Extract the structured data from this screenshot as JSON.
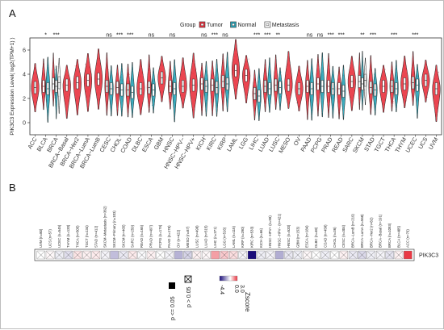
{
  "chart_data": [
    {
      "panel": "A",
      "type": "violin",
      "ylabel": "PIK3C3 Expression Level( log2(TPM+1) )",
      "ylim": [
        -1,
        7
      ],
      "yticks": [
        0,
        2,
        4,
        6
      ],
      "legend": {
        "title": "Group",
        "entries": [
          {
            "name": "Tumor",
            "color": "#e8323e"
          },
          {
            "name": "Normal",
            "color": "#27a3b7"
          },
          {
            "name": "Metastasis",
            "color": "#ffffff"
          }
        ],
        "position": "top"
      },
      "categories": [
        {
          "name": "ACC",
          "groups": [
            "T"
          ],
          "median": 2.9,
          "sig": ""
        },
        {
          "name": "BLCA",
          "groups": [
            "T",
            "N"
          ],
          "median": 3.0,
          "sig": "*"
        },
        {
          "name": "BRCA",
          "groups": [
            "T",
            "N",
            "M"
          ],
          "median": 3.2,
          "sig": "***"
        },
        {
          "name": "BRCA−Basal",
          "groups": [
            "T"
          ],
          "median": 3.1,
          "sig": ""
        },
        {
          "name": "BRCA−Her2",
          "groups": [
            "T"
          ],
          "median": 3.3,
          "sig": ""
        },
        {
          "name": "BRCA−LumA",
          "groups": [
            "T"
          ],
          "median": 3.5,
          "sig": ""
        },
        {
          "name": "BRCA−LumB",
          "groups": [
            "T"
          ],
          "median": 3.6,
          "sig": ""
        },
        {
          "name": "CESC",
          "groups": [
            "T",
            "N"
          ],
          "median": 3.0,
          "sig": "ns"
        },
        {
          "name": "CHOL",
          "groups": [
            "T",
            "N"
          ],
          "median": 2.9,
          "sig": "***"
        },
        {
          "name": "COAD",
          "groups": [
            "T",
            "N"
          ],
          "median": 2.7,
          "sig": "***"
        },
        {
          "name": "DLBC",
          "groups": [
            "T"
          ],
          "median": 2.8,
          "sig": ""
        },
        {
          "name": "ESCA",
          "groups": [
            "T",
            "N"
          ],
          "median": 2.9,
          "sig": "ns"
        },
        {
          "name": "GBM",
          "groups": [
            "T"
          ],
          "median": 3.7,
          "sig": ""
        },
        {
          "name": "HNSC",
          "groups": [
            "T",
            "N"
          ],
          "median": 3.0,
          "sig": "ns"
        },
        {
          "name": "HNSC−HPV−",
          "groups": [
            "T"
          ],
          "median": 3.0,
          "sig": ""
        },
        {
          "name": "HNSC−HPV+",
          "groups": [
            "T"
          ],
          "median": 3.1,
          "sig": ""
        },
        {
          "name": "KICH",
          "groups": [
            "T",
            "N"
          ],
          "median": 3.2,
          "sig": "ns"
        },
        {
          "name": "KIRC",
          "groups": [
            "T",
            "N"
          ],
          "median": 3.1,
          "sig": "***"
        },
        {
          "name": "KIRP",
          "groups": [
            "T",
            "N"
          ],
          "median": 3.4,
          "sig": "ns"
        },
        {
          "name": "LAML",
          "groups": [
            "T"
          ],
          "median": 4.3,
          "sig": ""
        },
        {
          "name": "LGG",
          "groups": [
            "T"
          ],
          "median": 3.9,
          "sig": ""
        },
        {
          "name": "LIHC",
          "groups": [
            "T",
            "N"
          ],
          "median": 2.4,
          "sig": "***"
        },
        {
          "name": "LUAD",
          "groups": [
            "T",
            "N"
          ],
          "median": 3.0,
          "sig": "***"
        },
        {
          "name": "LUSC",
          "groups": [
            "T",
            "N"
          ],
          "median": 3.1,
          "sig": "**"
        },
        {
          "name": "MESO",
          "groups": [
            "T"
          ],
          "median": 3.1,
          "sig": ""
        },
        {
          "name": "OV",
          "groups": [
            "T"
          ],
          "median": 2.8,
          "sig": ""
        },
        {
          "name": "PAAD",
          "groups": [
            "T",
            "N"
          ],
          "median": 3.0,
          "sig": "ns"
        },
        {
          "name": "PCPG",
          "groups": [
            "T",
            "N"
          ],
          "median": 3.2,
          "sig": "ns"
        },
        {
          "name": "PRAD",
          "groups": [
            "T",
            "N"
          ],
          "median": 3.0,
          "sig": "***"
        },
        {
          "name": "READ",
          "groups": [
            "T",
            "N"
          ],
          "median": 2.8,
          "sig": "***"
        },
        {
          "name": "SARC",
          "groups": [
            "T"
          ],
          "median": 3.4,
          "sig": ""
        },
        {
          "name": "SKCM",
          "groups": [
            "T",
            "N",
            "M"
          ],
          "median": 3.4,
          "sig": "**"
        },
        {
          "name": "STAD",
          "groups": [
            "T",
            "N"
          ],
          "median": 2.9,
          "sig": "***"
        },
        {
          "name": "TGCT",
          "groups": [
            "T"
          ],
          "median": 3.0,
          "sig": ""
        },
        {
          "name": "THCA",
          "groups": [
            "T",
            "N"
          ],
          "median": 3.0,
          "sig": "***"
        },
        {
          "name": "THYM",
          "groups": [
            "T"
          ],
          "median": 3.2,
          "sig": ""
        },
        {
          "name": "UCEC",
          "groups": [
            "T",
            "N"
          ],
          "median": 3.3,
          "sig": "***"
        },
        {
          "name": "UCS",
          "groups": [
            "T"
          ],
          "median": 3.5,
          "sig": ""
        },
        {
          "name": "UVM",
          "groups": [
            "T"
          ],
          "median": 2.8,
          "sig": ""
        }
      ]
    },
    {
      "panel": "B",
      "type": "heatmap",
      "row_label": "PIK3C3",
      "colorbar": {
        "title": "Zscore",
        "ticks": [
          "3.0",
          "0.0",
          "-4.4"
        ],
        "low": "#1a0d7a",
        "mid": "#ffffff",
        "high": "#e8323e"
      },
      "shape_legend": {
        "filled": "p <= 0.05",
        "crossed": "p > 0.05"
      },
      "columns": [
        {
          "label": "UVM (n=80)",
          "z": 0.0,
          "p_sig": false
        },
        {
          "label": "UCS (n=57)",
          "z": 0.1,
          "p_sig": false
        },
        {
          "label": "UCEC (n=545)",
          "z": -0.3,
          "p_sig": false
        },
        {
          "label": "THYM (n=120)",
          "z": -0.6,
          "p_sig": false
        },
        {
          "label": "THCA (n=505)",
          "z": 0.4,
          "p_sig": false
        },
        {
          "label": "TGCT (n=134)",
          "z": 0.2,
          "p_sig": false
        },
        {
          "label": "STAD (n=412)",
          "z": 0.3,
          "p_sig": false
        },
        {
          "label": "SKCM−Metastasis (n=362)",
          "z": -0.2,
          "p_sig": false
        },
        {
          "label": "SKCM−Primary (n=103)",
          "z": -1.2,
          "p_sig": true
        },
        {
          "label": "SKCM (n=465)",
          "z": -0.4,
          "p_sig": false
        },
        {
          "label": "SARC (n=259)",
          "z": 0.3,
          "p_sig": false
        },
        {
          "label": "READ (n=165)",
          "z": -0.1,
          "p_sig": false
        },
        {
          "label": "PRAD (n=497)",
          "z": 0.2,
          "p_sig": false
        },
        {
          "label": "PCPG (n=179)",
          "z": 0.0,
          "p_sig": false
        },
        {
          "label": "PAAD (n=178)",
          "z": -0.2,
          "p_sig": false
        },
        {
          "label": "OV (n=422)",
          "z": -1.4,
          "p_sig": true
        },
        {
          "label": "MESO (n=87)",
          "z": -0.8,
          "p_sig": false
        },
        {
          "label": "LUSC (n=498)",
          "z": 0.2,
          "p_sig": false
        },
        {
          "label": "LUAD (n=515)",
          "z": 0.1,
          "p_sig": false
        },
        {
          "label": "LIHC (n=371)",
          "z": 1.4,
          "p_sig": true
        },
        {
          "label": "LGG (n=516)",
          "z": 0.8,
          "p_sig": false
        },
        {
          "label": "LAML (n=115)",
          "z": 0.5,
          "p_sig": false
        },
        {
          "label": "KIRP (n=290)",
          "z": -0.2,
          "p_sig": false
        },
        {
          "label": "KIRC (n=533)",
          "z": -4.4,
          "p_sig": true
        },
        {
          "label": "KICH (n=66)",
          "z": -0.3,
          "p_sig": false
        },
        {
          "label": "HNSC−HPV+ (n=98)",
          "z": -0.2,
          "p_sig": false
        },
        {
          "label": "HNSC−HPV− (n=421)",
          "z": -1.5,
          "p_sig": true
        },
        {
          "label": "HNSC (n=520)",
          "z": -0.4,
          "p_sig": false
        },
        {
          "label": "GBM (n=153)",
          "z": -0.3,
          "p_sig": false
        },
        {
          "label": "ESCA (n=184)",
          "z": 0.1,
          "p_sig": false
        },
        {
          "label": "DLBC (n=48)",
          "z": 0.0,
          "p_sig": false
        },
        {
          "label": "COAD (n=458)",
          "z": -0.3,
          "p_sig": false
        },
        {
          "label": "CHOL (n=36)",
          "z": 0.0,
          "p_sig": false
        },
        {
          "label": "CESC (n=304)",
          "z": 0.2,
          "p_sig": false
        },
        {
          "label": "BRCA−LumB (n=219)",
          "z": -0.4,
          "p_sig": false
        },
        {
          "label": "BRCA−LumA (n=568)",
          "z": -0.7,
          "p_sig": false
        },
        {
          "label": "BRCA−Her2 (n=82)",
          "z": -0.3,
          "p_sig": false
        },
        {
          "label": "BRCA−Basal (n=191)",
          "z": -0.2,
          "p_sig": false
        },
        {
          "label": "BRCA (n=1093)",
          "z": -0.5,
          "p_sig": false
        },
        {
          "label": "BLCA (n=405)",
          "z": 0.2,
          "p_sig": false
        },
        {
          "label": "ACC (n=79)",
          "z": 2.9,
          "p_sig": true
        }
      ]
    }
  ],
  "panel_a_letter": "A",
  "panel_b_letter": "B"
}
